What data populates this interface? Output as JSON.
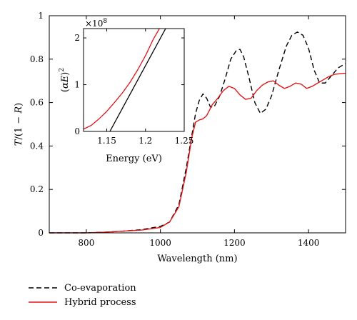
{
  "chart_data": [
    {
      "type": "line",
      "xlabel": "Wavelength (nm)",
      "ylabel_parts": [
        "T",
        "/(1 − ",
        "R",
        ")"
      ],
      "xlim": [
        700,
        1500
      ],
      "ylim": [
        0,
        1
      ],
      "xticks": [
        800,
        1000,
        1200,
        1400
      ],
      "yticks": [
        0,
        0.2,
        0.4,
        0.6,
        0.8,
        1
      ],
      "ytick_labels": [
        "0",
        "0.2",
        "0.4",
        "0.6",
        "0.8",
        "1"
      ],
      "grid": false,
      "legend_position": "below",
      "series": [
        {
          "name": "Co-evaporation",
          "color": "#000000",
          "dash": "dashed",
          "x": [
            700,
            800,
            850,
            900,
            950,
            1000,
            1025,
            1050,
            1070,
            1085,
            1095,
            1105,
            1115,
            1125,
            1135,
            1145,
            1160,
            1175,
            1190,
            1205,
            1215,
            1225,
            1240,
            1255,
            1270,
            1285,
            1300,
            1320,
            1340,
            1355,
            1370,
            1385,
            1400,
            1415,
            1430,
            1445,
            1460,
            1480,
            1500
          ],
          "y": [
            0.0,
            0.0,
            0.003,
            0.008,
            0.015,
            0.03,
            0.05,
            0.13,
            0.3,
            0.45,
            0.55,
            0.61,
            0.64,
            0.62,
            0.58,
            0.58,
            0.63,
            0.71,
            0.8,
            0.84,
            0.845,
            0.81,
            0.71,
            0.6,
            0.55,
            0.57,
            0.63,
            0.75,
            0.86,
            0.91,
            0.925,
            0.91,
            0.85,
            0.75,
            0.69,
            0.69,
            0.72,
            0.76,
            0.78
          ]
        },
        {
          "name": "Hybrid process",
          "color": "#e0161b",
          "dash": "solid",
          "x": [
            700,
            800,
            850,
            900,
            950,
            1000,
            1025,
            1050,
            1070,
            1085,
            1095,
            1105,
            1115,
            1125,
            1140,
            1155,
            1170,
            1185,
            1200,
            1215,
            1230,
            1245,
            1260,
            1275,
            1290,
            1305,
            1320,
            1335,
            1350,
            1365,
            1380,
            1395,
            1410,
            1425,
            1440,
            1455,
            1470,
            1485,
            1500
          ],
          "y": [
            0.0,
            0.0,
            0.003,
            0.008,
            0.013,
            0.025,
            0.05,
            0.12,
            0.28,
            0.44,
            0.51,
            0.52,
            0.525,
            0.54,
            0.59,
            0.62,
            0.655,
            0.675,
            0.665,
            0.635,
            0.615,
            0.62,
            0.655,
            0.68,
            0.695,
            0.7,
            0.68,
            0.665,
            0.675,
            0.69,
            0.685,
            0.665,
            0.675,
            0.69,
            0.705,
            0.72,
            0.73,
            0.733,
            0.735
          ]
        }
      ]
    },
    {
      "type": "line",
      "inset": true,
      "xlabel": "Energy (eV)",
      "ylabel_parts": [
        "(",
        "αE",
        ")",
        "2"
      ],
      "multiplier_text": "×10",
      "multiplier_exp": "8",
      "xlim": [
        1.12,
        1.25
      ],
      "ylim": [
        0,
        2.2
      ],
      "xticks": [
        1.15,
        1.2,
        1.25
      ],
      "yticks": [
        0,
        1,
        2
      ],
      "grid": false,
      "series": [
        {
          "name": "",
          "color": "#000000",
          "x": [
            1.154,
            1.226
          ],
          "y": [
            0,
            2.2
          ]
        },
        {
          "name": "",
          "color": "#e0161b",
          "x": [
            1.12,
            1.13,
            1.14,
            1.15,
            1.16,
            1.17,
            1.18,
            1.19,
            1.2,
            1.21,
            1.218
          ],
          "y": [
            0.05,
            0.13,
            0.27,
            0.43,
            0.62,
            0.82,
            1.05,
            1.32,
            1.62,
            1.97,
            2.2
          ]
        }
      ]
    }
  ],
  "legend": [
    {
      "label": "Co-evaporation",
      "color": "#000000",
      "dash": "dashed"
    },
    {
      "label": "Hybrid process",
      "color": "#e0161b",
      "dash": "solid"
    }
  ]
}
